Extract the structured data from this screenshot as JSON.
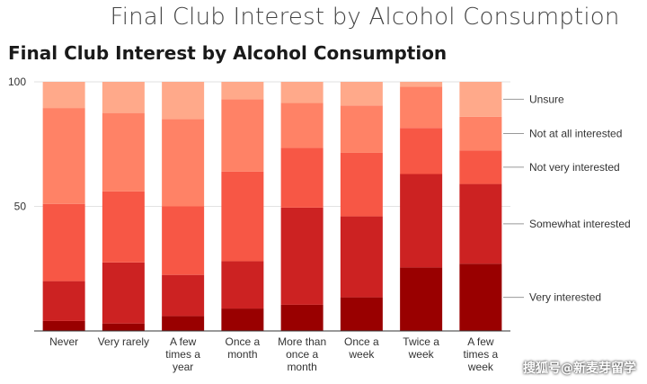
{
  "page": {
    "header_title": "Final Club Interest by Alcohol Consumption",
    "watermark": "搜狐号@新麦芽留学"
  },
  "colors": {
    "Very interested": "#990000",
    "Somewhat interested": "#cc2222",
    "Not very interested": "#f75745",
    "Not at all interested": "#ff8266",
    "Unsure": "#ffa98a"
  },
  "chart_data": {
    "type": "bar",
    "stacked": true,
    "title": "Final Club Interest by Alcohol Consumption",
    "xlabel": "",
    "ylabel": "",
    "ylim": [
      0,
      100
    ],
    "yticks": [
      50,
      100
    ],
    "grid": true,
    "legend_position": "right",
    "categories": [
      [
        "Never"
      ],
      [
        "Very rarely"
      ],
      [
        "A few",
        "times a",
        "year"
      ],
      [
        "Once a",
        "month"
      ],
      [
        "More than",
        "once a",
        "month"
      ],
      [
        "Once a",
        "week"
      ],
      [
        "Twice a",
        "week"
      ],
      [
        "A few",
        "times a",
        "week"
      ]
    ],
    "series": [
      {
        "name": "Very interested",
        "values": [
          4,
          3,
          6,
          9,
          10.5,
          13.5,
          25.5,
          27
        ]
      },
      {
        "name": "Somewhat interested",
        "values": [
          16,
          24.5,
          16.5,
          19,
          39,
          32.5,
          37.5,
          32
        ]
      },
      {
        "name": "Not very interested",
        "values": [
          31,
          28.5,
          27.5,
          36,
          24,
          25.5,
          18.5,
          13.5
        ]
      },
      {
        "name": "Not at all interested",
        "values": [
          38.5,
          31.5,
          35,
          29,
          18,
          19,
          16.5,
          13.5
        ]
      },
      {
        "name": "Unsure",
        "values": [
          10.5,
          12.5,
          15,
          7,
          8.5,
          9.5,
          2,
          14
        ]
      }
    ]
  }
}
